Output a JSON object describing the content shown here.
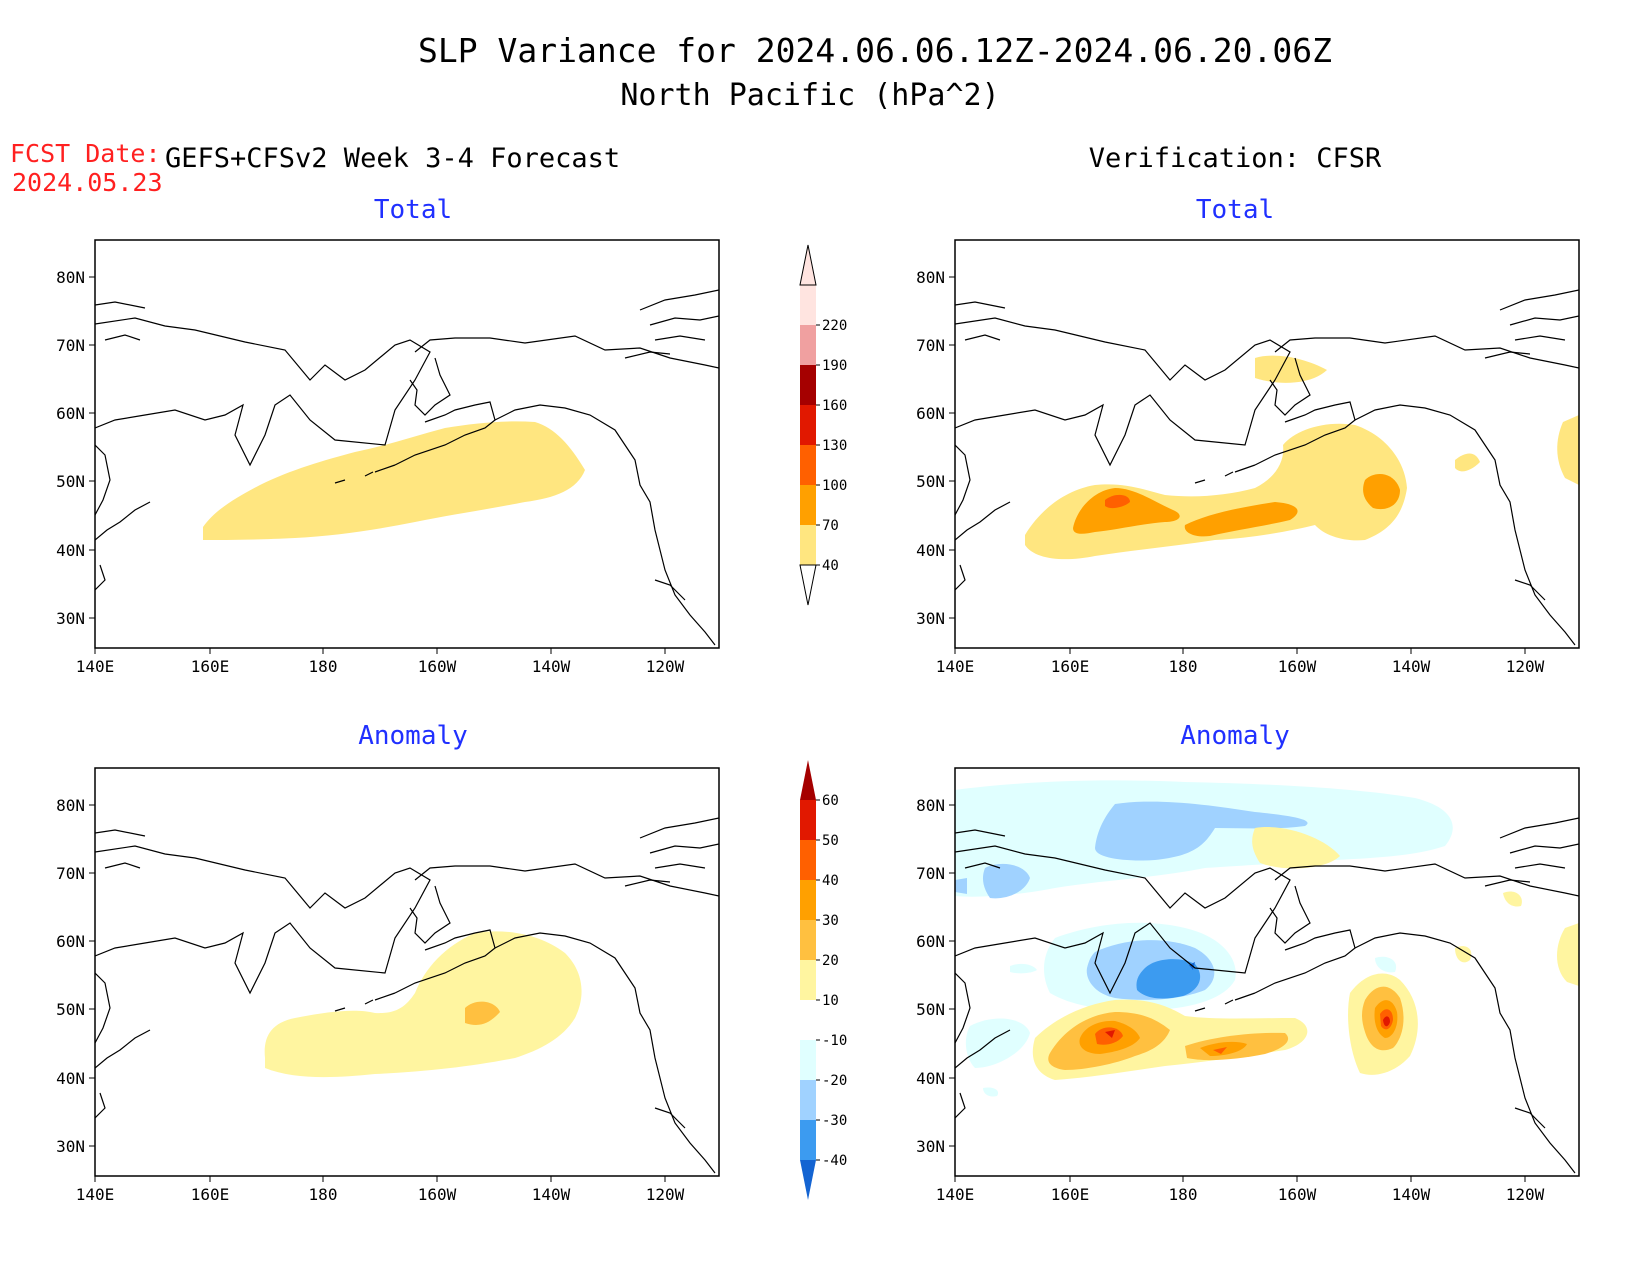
{
  "title": {
    "line1": "SLP Variance for 2024.06.06.12Z-2024.06.20.06Z",
    "line2": "North Pacific (hPa^2)"
  },
  "fcst": {
    "label": "FCST Date:",
    "date": "2024.05.23"
  },
  "columns": {
    "forecast": "GEFS+CFSv2 Week 3-4 Forecast",
    "verification": "Verification: CFSR"
  },
  "panel_titles": {
    "total": "Total",
    "anomaly": "Anomaly"
  },
  "map_axes": {
    "lat_labels": [
      "80N",
      "70N",
      "60N",
      "50N",
      "40N",
      "30N"
    ],
    "lon_labels": [
      "140E",
      "160E",
      "180",
      "160W",
      "140W",
      "120W"
    ]
  },
  "legend_total": {
    "levels": [
      "40",
      "70",
      "100",
      "130",
      "160",
      "190",
      "220"
    ],
    "colors": [
      "#ffe680",
      "#ffa000",
      "#ff6000",
      "#e11800",
      "#a50000",
      "#f0a0a0",
      "#ffe4e0"
    ]
  },
  "legend_anomaly": {
    "levels": [
      "60",
      "50",
      "40",
      "30",
      "20",
      "10",
      "-10",
      "-20",
      "-30",
      "-40"
    ],
    "colors": [
      "#a50000",
      "#e11800",
      "#ff6000",
      "#ffa000",
      "#ffc040",
      "#fff5a0",
      "#ffffff",
      "#e0ffff",
      "#a0d2ff",
      "#3c9bf0",
      "#1464d2"
    ]
  }
}
